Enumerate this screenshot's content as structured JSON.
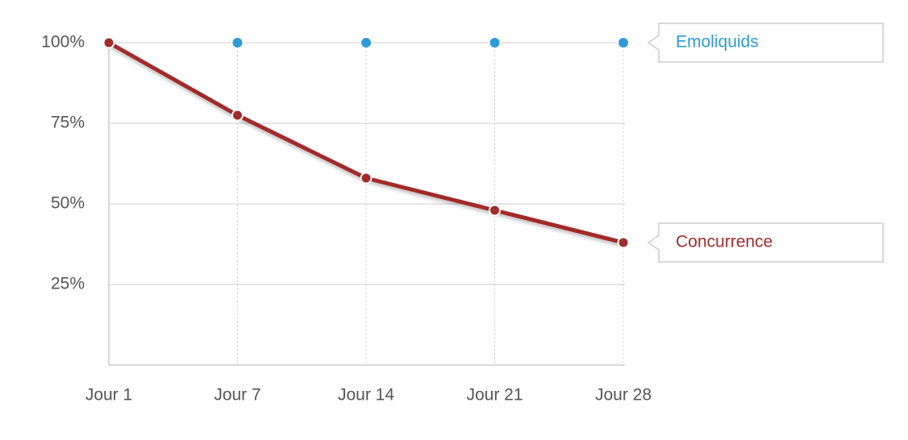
{
  "chart_data": {
    "type": "line",
    "categories": [
      "Jour 1",
      "Jour 7",
      "Jour 14",
      "Jour 21",
      "Jour 28"
    ],
    "series": [
      {
        "name": "Emoliquids",
        "color": "#2e9bd6",
        "values": [
          100,
          100,
          100,
          100,
          100
        ]
      },
      {
        "name": "Concurrence",
        "color": "#a32c2c",
        "values": [
          100,
          77.5,
          58,
          48,
          38
        ]
      }
    ],
    "ylim": [
      0,
      100
    ],
    "yticks": [
      {
        "value": 25,
        "label": "25%"
      },
      {
        "value": 50,
        "label": "50%"
      },
      {
        "value": 75,
        "label": "75%"
      },
      {
        "value": 100,
        "label": "100%"
      }
    ],
    "grid": true
  }
}
